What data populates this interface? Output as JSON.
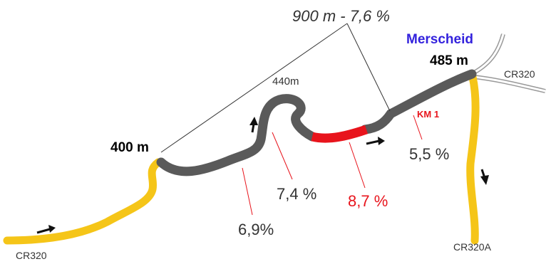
{
  "summary": {
    "label": "900 m - 7,6 %"
  },
  "town": {
    "name": "Merscheid",
    "color": "#3322dd"
  },
  "altitudes": {
    "start": "400 m",
    "mid": "440m",
    "top": "485 m"
  },
  "km_marker": {
    "label": "KM 1",
    "color": "#e8141c"
  },
  "gradients": [
    {
      "label": "6,9%",
      "color": "#333333"
    },
    {
      "label": "7,4 %",
      "color": "#333333"
    },
    {
      "label": "8,7 %",
      "color": "#e8141c"
    },
    {
      "label": "5,5 %",
      "color": "#333333"
    }
  ],
  "roads": {
    "start": "CR320",
    "east": "CR320",
    "south": "CR320A"
  },
  "colors": {
    "approach_road": "#f5c518",
    "climb_road": "#5a5a5a",
    "steepest_section": "#e8141c",
    "side_road": "#999999"
  }
}
